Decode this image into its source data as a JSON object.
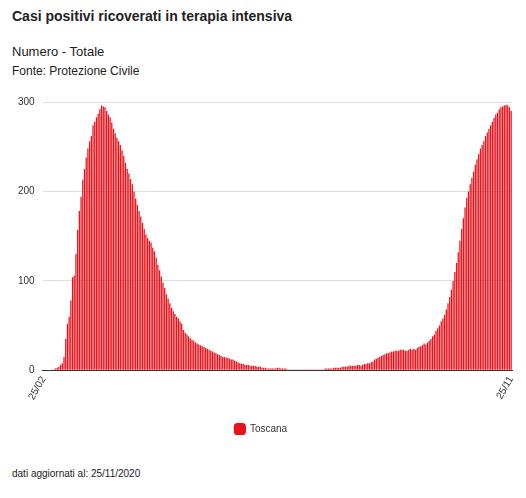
{
  "chart_data": {
    "type": "bar",
    "title": "Casi positivi ricoverati in terapia intensiva",
    "subtitle": "Numero - Totale",
    "source": "Fonte: Protezione Civile",
    "footnote": "dati aggiornati al: 25/11/2020",
    "categories": [
      "25/02",
      null,
      null,
      null,
      null,
      null,
      null,
      null,
      null,
      null,
      null,
      null,
      null,
      null,
      null,
      null,
      null,
      null,
      null,
      null,
      null,
      null,
      null,
      null,
      null,
      null,
      null,
      null,
      null,
      null,
      null,
      null,
      null,
      null,
      null,
      null,
      null,
      null,
      null,
      null,
      null,
      null,
      null,
      null,
      null,
      null,
      null,
      null,
      null,
      null,
      null,
      null,
      null,
      null,
      null,
      null,
      null,
      null,
      null,
      null,
      null,
      null,
      null,
      null,
      null,
      null,
      null,
      null,
      null,
      null,
      null,
      null,
      null,
      null,
      null,
      null,
      null,
      null,
      null,
      null,
      null,
      null,
      null,
      null,
      null,
      null,
      null,
      null,
      null,
      null,
      null,
      null,
      null,
      null,
      null,
      null,
      null,
      null,
      null,
      null,
      null,
      null,
      null,
      null,
      null,
      null,
      null,
      null,
      null,
      null,
      null,
      null,
      null,
      null,
      null,
      null,
      null,
      null,
      null,
      null,
      null,
      null,
      null,
      null,
      null,
      null,
      null,
      null,
      null,
      null,
      null,
      null,
      null,
      null,
      null,
      null,
      null,
      null,
      null,
      null,
      null,
      null,
      null,
      null,
      null,
      null,
      null,
      null,
      null,
      null,
      null,
      null,
      null,
      null,
      null,
      null,
      null,
      null,
      null,
      null,
      null,
      null,
      null,
      null,
      null,
      null,
      null,
      null,
      null,
      null,
      null,
      null,
      null,
      null,
      null,
      null,
      null,
      null,
      null,
      null,
      null,
      null,
      null,
      null,
      null,
      null,
      null,
      null,
      null,
      null,
      null,
      null,
      null,
      null,
      null,
      null,
      null,
      null,
      null,
      null,
      null,
      null,
      null,
      null,
      null,
      null,
      null,
      null,
      null,
      null,
      null,
      null,
      null,
      null,
      null,
      null,
      null,
      null,
      null,
      null,
      null,
      null,
      null,
      null,
      null,
      null,
      null,
      null,
      null,
      null,
      null,
      null,
      null,
      null,
      null,
      null,
      null,
      null,
      null,
      null,
      null,
      null,
      null,
      null,
      null,
      null,
      null,
      null,
      null,
      null,
      null,
      null,
      null,
      null,
      null,
      null,
      null,
      null,
      null,
      null,
      null,
      null,
      null,
      null,
      null,
      null,
      null,
      null,
      null,
      null,
      null,
      null,
      null,
      null,
      "25/11"
    ],
    "series": [
      {
        "name": "Toscana",
        "color": "#e8121a",
        "values": [
          0,
          0,
          0,
          0,
          0,
          0,
          1,
          2,
          3,
          4,
          6,
          8,
          15,
          35,
          52,
          60,
          78,
          104,
          106,
          130,
          157,
          178,
          194,
          213,
          225,
          238,
          248,
          256,
          262,
          274,
          278,
          283,
          287,
          292,
          296,
          295,
          294,
          290,
          286,
          283,
          277,
          270,
          265,
          260,
          256,
          252,
          246,
          240,
          232,
          225,
          220,
          214,
          208,
          200,
          192,
          185,
          178,
          172,
          165,
          158,
          152,
          148,
          145,
          143,
          137,
          133,
          126,
          118,
          112,
          105,
          98,
          92,
          85,
          80,
          75,
          70,
          66,
          63,
          60,
          58,
          55,
          52,
          45,
          42,
          40,
          38,
          36,
          34,
          33,
          31,
          30,
          29,
          28,
          27,
          26,
          25,
          24,
          23,
          22,
          21,
          20,
          19,
          18,
          17,
          16,
          15,
          15,
          14,
          14,
          13,
          12,
          12,
          11,
          10,
          9,
          8,
          7,
          7,
          6,
          6,
          6,
          5,
          5,
          5,
          5,
          4,
          4,
          4,
          3,
          3,
          3,
          2,
          2,
          2,
          2,
          2,
          2,
          3,
          3,
          2,
          2,
          2,
          2,
          1,
          1,
          1,
          1,
          1,
          1,
          1,
          1,
          1,
          1,
          1,
          1,
          1,
          1,
          1,
          1,
          1,
          1,
          1,
          1,
          1,
          1,
          2,
          2,
          2,
          2,
          2,
          3,
          3,
          3,
          3,
          3,
          4,
          4,
          4,
          4,
          5,
          5,
          5,
          5,
          5,
          6,
          6,
          5,
          6,
          7,
          7,
          8,
          8,
          9,
          10,
          12,
          13,
          14,
          15,
          16,
          17,
          18,
          19,
          19,
          20,
          21,
          21,
          22,
          22,
          22,
          23,
          23,
          23,
          22,
          22,
          23,
          24,
          23,
          24,
          23,
          25,
          26,
          27,
          28,
          30,
          29,
          31,
          33,
          35,
          38,
          40,
          44,
          47,
          50,
          55,
          58,
          62,
          68,
          75,
          82,
          90,
          100,
          110,
          120,
          132,
          145,
          158,
          170,
          182,
          193,
          200,
          208,
          215,
          222,
          230,
          236,
          242,
          248,
          252,
          256,
          262,
          266,
          270,
          274,
          278,
          282,
          286,
          288,
          292,
          294,
          295,
          296,
          297,
          296,
          294,
          290
        ]
      }
    ],
    "ylim": [
      0,
      300
    ],
    "yticks": [
      0,
      100,
      200,
      300
    ],
    "grid": true,
    "legend": "bottom"
  }
}
